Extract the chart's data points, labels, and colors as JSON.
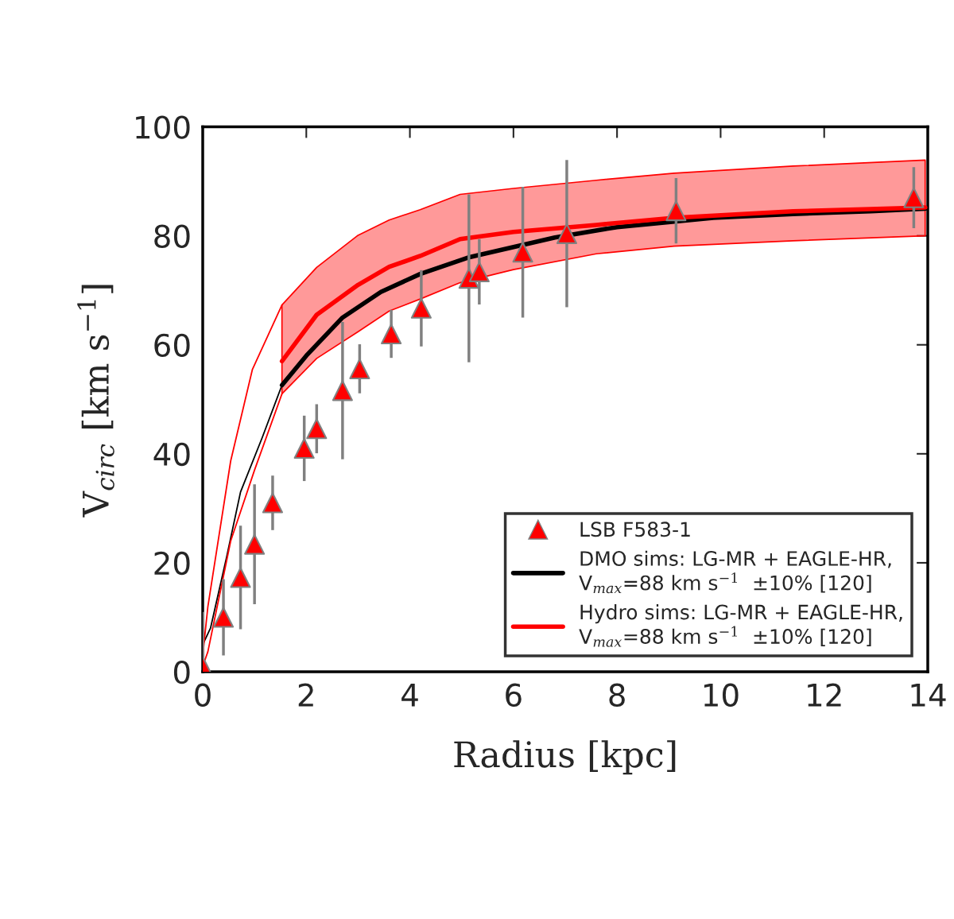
{
  "chart_data": {
    "type": "line",
    "xlabel": "Radius [kpc]",
    "ylabel": "V$_{circ}$ [km s$^{−1}$]",
    "xlim": [
      0,
      14
    ],
    "xticks": [
      0,
      2,
      4,
      6,
      8,
      10,
      12,
      14
    ],
    "ylim": [
      0,
      100
    ],
    "yticks": [
      0,
      20,
      40,
      60,
      80,
      100
    ],
    "grid": false,
    "legend": "bottom right",
    "series": [
      {
        "type": "scatter",
        "name": "LSB F583-1",
        "color": "#ff0000",
        "marker": "triangle",
        "x": [
          0,
          0.4,
          0.73,
          1.0,
          1.35,
          1.96,
          2.2,
          2.7,
          3.03,
          3.64,
          4.22,
          5.14,
          5.34,
          6.18,
          7.03,
          9.14,
          13.73
        ],
        "values": [
          1,
          10,
          17.3,
          23.4,
          31,
          41,
          44.6,
          51.6,
          55.6,
          62,
          66.7,
          72.2,
          73.4,
          77,
          80.4,
          84.6,
          87
        ],
        "errors": [
          10,
          7,
          9.5,
          11,
          5,
          6,
          4.5,
          12.6,
          4.5,
          4.4,
          7,
          15.4,
          6,
          12,
          13.5,
          6,
          5.6
        ]
      },
      {
        "color": "#000000",
        "x": [
          0,
          0.15,
          0.46,
          0.73,
          1.15,
          1.53
        ],
        "values": [
          5,
          8,
          21,
          33,
          43,
          52.6
        ]
      },
      {
        "color": "#ff0000",
        "x": [
          0,
          0.1,
          0.54,
          0.96,
          1.53
        ],
        "values": [
          3,
          12,
          38.7,
          55.5,
          67.3
        ]
      },
      {
        "color": "#ff0000",
        "x": [
          0,
          0.1,
          0.54,
          1.0,
          1.53
        ],
        "values": [
          1,
          3.7,
          24,
          37,
          51
        ]
      },
      {
        "name": "DMO sims: LG-MR + EAGLE-HR,\nV$_{max}$=88 km s$^{−1}$  ±10% [120]",
        "color": "#000000",
        "x": [
          1.53,
          2,
          2.7,
          3.44,
          4.2,
          5.12,
          6.8,
          8,
          9.86,
          11.4,
          12.9,
          13.95
        ],
        "values": [
          52.6,
          58,
          65,
          69.7,
          73,
          76,
          79.7,
          81.6,
          83.3,
          84,
          84.5,
          85
        ]
      },
      {
        "name": "Hydro sims: LG-MR + EAGLE-HR,\nV$_{max}$=88 km s$^{−1}$  ±10% [120]",
        "color": "#ff0000",
        "x": [
          1.53,
          2.2,
          3,
          3.6,
          4.2,
          4.97,
          6,
          7.6,
          9.1,
          11.4,
          13.95
        ],
        "values": [
          57,
          65.5,
          71,
          74.3,
          76.3,
          79.4,
          80.7,
          82,
          83.3,
          84.5,
          85.2
        ],
        "lower": [
          51,
          57.5,
          62.4,
          66.2,
          68.4,
          71.4,
          73.8,
          76.7,
          78.1,
          79.1,
          80
        ],
        "upper": [
          67.3,
          74.2,
          80.1,
          82.9,
          84.8,
          87.6,
          88.7,
          90.2,
          91.5,
          92.8,
          93.9
        ]
      }
    ]
  }
}
